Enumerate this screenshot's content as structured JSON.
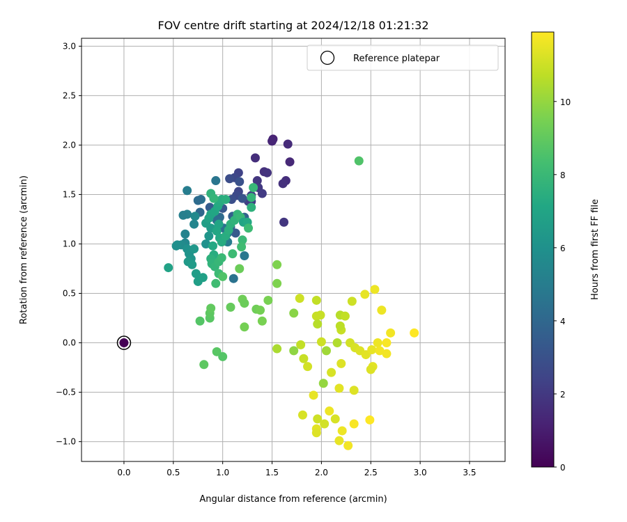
{
  "chart_data": {
    "type": "scatter",
    "title": "FOV centre drift starting at 2024/12/18 01:21:32",
    "xlabel": "Angular distance from reference (arcmin)",
    "ylabel": "Rotation from reference (arcmin)",
    "xlim": [
      -0.43,
      3.86
    ],
    "ylim": [
      -1.2,
      3.08
    ],
    "xticks": [
      "0.0",
      "0.5",
      "1.0",
      "1.5",
      "2.0",
      "2.5",
      "3.0",
      "3.5"
    ],
    "yticks": [
      "−1.0",
      "−0.5",
      "0.0",
      "0.5",
      "1.0",
      "1.5",
      "2.0",
      "2.5",
      "3.0"
    ],
    "grid": true,
    "legend": {
      "position": "top-right",
      "entries": [
        "Reference platepar"
      ]
    },
    "colorbar": {
      "label": "Hours from first FF file",
      "range": [
        0,
        11.9
      ],
      "ticks": [
        "0",
        "2",
        "4",
        "6",
        "8",
        "10"
      ],
      "colormap": "viridis"
    },
    "reference_point": {
      "x": 0.0,
      "y": 0.0
    },
    "series": [
      {
        "points": [
          [
            0.0,
            0.0,
            0.0
          ],
          [
            1.51,
            2.06,
            1.2
          ],
          [
            1.5,
            2.04,
            1.3
          ],
          [
            1.66,
            2.01,
            1.5
          ],
          [
            1.33,
            1.87,
            1.6
          ],
          [
            1.68,
            1.83,
            1.4
          ],
          [
            1.42,
            1.73,
            1.7
          ],
          [
            1.45,
            1.72,
            1.8
          ],
          [
            1.64,
            1.64,
            1.6
          ],
          [
            1.61,
            1.61,
            1.7
          ],
          [
            1.35,
            1.64,
            1.9
          ],
          [
            1.36,
            1.57,
            2.0
          ],
          [
            1.4,
            1.51,
            2.1
          ],
          [
            1.29,
            1.49,
            2.2
          ],
          [
            1.26,
            1.43,
            2.3
          ],
          [
            1.29,
            1.43,
            2.2
          ],
          [
            1.62,
            1.22,
            1.9
          ],
          [
            1.16,
            1.72,
            2.4
          ],
          [
            1.12,
            1.67,
            2.6
          ],
          [
            1.07,
            1.66,
            2.8
          ],
          [
            1.17,
            1.63,
            3.0
          ],
          [
            1.16,
            1.53,
            2.5
          ],
          [
            1.14,
            1.49,
            2.7
          ],
          [
            1.09,
            1.45,
            2.9
          ],
          [
            1.2,
            1.46,
            3.1
          ],
          [
            1.0,
            1.36,
            3.3
          ],
          [
            0.87,
            1.37,
            3.5
          ],
          [
            1.1,
            1.28,
            3.6
          ],
          [
            1.22,
            1.27,
            3.8
          ],
          [
            1.13,
            1.11,
            3.4
          ],
          [
            1.08,
            1.17,
            3.7
          ],
          [
            0.93,
            1.64,
            4.6
          ],
          [
            0.78,
            1.45,
            4.4
          ],
          [
            0.75,
            1.44,
            4.2
          ],
          [
            0.77,
            1.32,
            4.0
          ],
          [
            0.97,
            1.27,
            4.1
          ],
          [
            0.94,
            1.24,
            4.3
          ],
          [
            1.01,
            1.16,
            4.5
          ],
          [
            1.05,
            1.11,
            4.8
          ],
          [
            1.05,
            1.02,
            4.9
          ],
          [
            1.22,
            0.88,
            4.7
          ],
          [
            1.11,
            0.65,
            4.5
          ],
          [
            0.64,
            1.54,
            5.0
          ],
          [
            0.64,
            1.3,
            5.2
          ],
          [
            0.71,
            1.2,
            5.4
          ],
          [
            0.72,
            1.28,
            5.6
          ],
          [
            0.6,
            1.29,
            5.1
          ],
          [
            0.62,
            1.1,
            5.3
          ],
          [
            0.62,
            1.01,
            5.5
          ],
          [
            0.58,
            0.99,
            5.7
          ],
          [
            0.54,
            0.99,
            5.8
          ],
          [
            0.53,
            0.98,
            5.9
          ],
          [
            0.64,
            0.95,
            6.0
          ],
          [
            0.66,
            0.9,
            6.1
          ],
          [
            0.68,
            0.85,
            6.2
          ],
          [
            0.71,
            0.95,
            6.3
          ],
          [
            0.65,
            0.82,
            6.4
          ],
          [
            0.69,
            0.79,
            6.5
          ],
          [
            0.73,
            0.7,
            6.6
          ],
          [
            0.75,
            0.62,
            6.7
          ],
          [
            0.8,
            0.66,
            6.8
          ],
          [
            0.45,
            0.76,
            6.9
          ],
          [
            0.83,
            1.0,
            6.0
          ],
          [
            0.86,
            1.08,
            6.2
          ],
          [
            0.88,
            1.16,
            6.5
          ],
          [
            0.83,
            1.21,
            6.7
          ],
          [
            0.86,
            1.26,
            6.9
          ],
          [
            0.88,
            1.3,
            7.0
          ],
          [
            0.92,
            1.33,
            7.1
          ],
          [
            0.95,
            1.38,
            7.2
          ],
          [
            0.97,
            1.42,
            7.3
          ],
          [
            0.99,
            1.45,
            7.4
          ],
          [
            1.03,
            1.45,
            7.5
          ],
          [
            0.96,
            1.2,
            7.0
          ],
          [
            0.94,
            1.13,
            7.1
          ],
          [
            0.97,
            1.06,
            7.2
          ],
          [
            0.99,
            1.02,
            7.3
          ],
          [
            1.03,
            1.08,
            7.4
          ],
          [
            1.06,
            1.14,
            7.5
          ],
          [
            1.08,
            1.2,
            7.6
          ],
          [
            1.12,
            1.24,
            7.7
          ],
          [
            1.15,
            1.3,
            7.8
          ],
          [
            1.18,
            1.27,
            7.9
          ],
          [
            1.21,
            1.22,
            7.0
          ],
          [
            1.25,
            1.22,
            7.2
          ],
          [
            1.29,
            1.37,
            7.6
          ],
          [
            1.29,
            1.47,
            7.8
          ],
          [
            1.31,
            1.57,
            7.9
          ],
          [
            0.88,
            1.51,
            7.7
          ],
          [
            0.91,
            1.46,
            7.8
          ],
          [
            0.9,
            0.98,
            7.2
          ],
          [
            0.91,
            0.89,
            7.4
          ],
          [
            0.88,
            0.85,
            7.6
          ],
          [
            0.89,
            0.8,
            7.7
          ],
          [
            0.92,
            0.77,
            7.8
          ],
          [
            0.96,
            0.82,
            7.9
          ],
          [
            0.99,
            0.86,
            8.0
          ],
          [
            0.96,
            0.7,
            8.1
          ],
          [
            0.93,
            0.6,
            8.2
          ],
          [
            1.1,
            0.9,
            8.1
          ],
          [
            1.2,
            1.04,
            8.0
          ],
          [
            1.26,
            1.16,
            8.1
          ],
          [
            1.19,
            0.97,
            8.2
          ],
          [
            1.0,
            0.67,
            8.6
          ],
          [
            0.77,
            0.22,
            8.7
          ],
          [
            0.87,
            0.25,
            8.8
          ],
          [
            0.87,
            0.3,
            8.9
          ],
          [
            0.88,
            0.35,
            9.0
          ],
          [
            0.81,
            -0.22,
            8.9
          ],
          [
            0.94,
            -0.09,
            8.8
          ],
          [
            1.0,
            -0.14,
            8.7
          ],
          [
            1.08,
            0.36,
            9.1
          ],
          [
            1.17,
            0.75,
            9.2
          ],
          [
            1.2,
            0.44,
            9.3
          ],
          [
            1.22,
            0.4,
            9.2
          ],
          [
            1.22,
            0.16,
            9.4
          ],
          [
            1.34,
            0.34,
            9.3
          ],
          [
            1.38,
            0.33,
            9.4
          ],
          [
            1.4,
            0.22,
            9.5
          ],
          [
            1.46,
            0.43,
            9.5
          ],
          [
            1.55,
            0.79,
            9.6
          ],
          [
            1.55,
            0.6,
            9.6
          ],
          [
            2.38,
            1.84,
            8.6
          ],
          [
            1.72,
            0.3,
            9.8
          ],
          [
            1.72,
            -0.08,
            9.9
          ],
          [
            1.55,
            -0.06,
            10.4
          ],
          [
            2.02,
            -0.41,
            10.0
          ],
          [
            2.05,
            -0.08,
            10.2
          ],
          [
            1.78,
            0.45,
            11.0
          ],
          [
            1.95,
            0.43,
            10.8
          ],
          [
            1.95,
            0.27,
            10.9
          ],
          [
            1.96,
            0.19,
            10.6
          ],
          [
            2.0,
            0.01,
            11.0
          ],
          [
            1.79,
            -0.02,
            10.8
          ],
          [
            1.82,
            -0.16,
            10.9
          ],
          [
            1.86,
            -0.24,
            11.1
          ],
          [
            2.1,
            -0.3,
            11.2
          ],
          [
            2.2,
            -0.21,
            11.3
          ],
          [
            2.18,
            -0.46,
            11.4
          ],
          [
            1.92,
            -0.53,
            11.5
          ],
          [
            2.08,
            -0.69,
            11.6
          ],
          [
            1.81,
            -0.73,
            11.2
          ],
          [
            1.96,
            -0.77,
            11.0
          ],
          [
            2.03,
            -0.82,
            11.1
          ],
          [
            2.14,
            -0.77,
            11.2
          ],
          [
            1.95,
            -0.87,
            11.4
          ],
          [
            1.95,
            -0.91,
            11.3
          ],
          [
            2.18,
            -0.99,
            11.5
          ],
          [
            2.21,
            -0.89,
            11.6
          ],
          [
            2.27,
            -1.04,
            11.7
          ],
          [
            2.33,
            -0.82,
            11.8
          ],
          [
            2.49,
            -0.78,
            11.9
          ],
          [
            2.33,
            -0.48,
            11.3
          ],
          [
            2.2,
            0.13,
            10.9
          ],
          [
            2.19,
            0.17,
            10.7
          ],
          [
            2.19,
            0.28,
            10.6
          ],
          [
            2.24,
            0.27,
            10.8
          ],
          [
            2.31,
            0.42,
            11.0
          ],
          [
            2.29,
            0.0,
            11.1
          ],
          [
            2.34,
            -0.05,
            11.2
          ],
          [
            2.39,
            -0.08,
            11.3
          ],
          [
            2.45,
            -0.12,
            11.4
          ],
          [
            2.51,
            -0.07,
            11.5
          ],
          [
            2.52,
            -0.24,
            11.4
          ],
          [
            2.5,
            -0.27,
            11.3
          ],
          [
            2.57,
            0.0,
            11.6
          ],
          [
            2.59,
            -0.08,
            11.7
          ],
          [
            2.66,
            -0.11,
            11.7
          ],
          [
            2.66,
            0.0,
            11.8
          ],
          [
            2.7,
            0.1,
            11.7
          ],
          [
            2.61,
            0.33,
            11.6
          ],
          [
            2.44,
            0.49,
            11.5
          ],
          [
            2.54,
            0.54,
            11.6
          ],
          [
            2.94,
            0.1,
            11.9
          ],
          [
            2.16,
            0.0,
            10.5
          ],
          [
            1.99,
            0.28,
            10.9
          ]
        ]
      }
    ]
  }
}
